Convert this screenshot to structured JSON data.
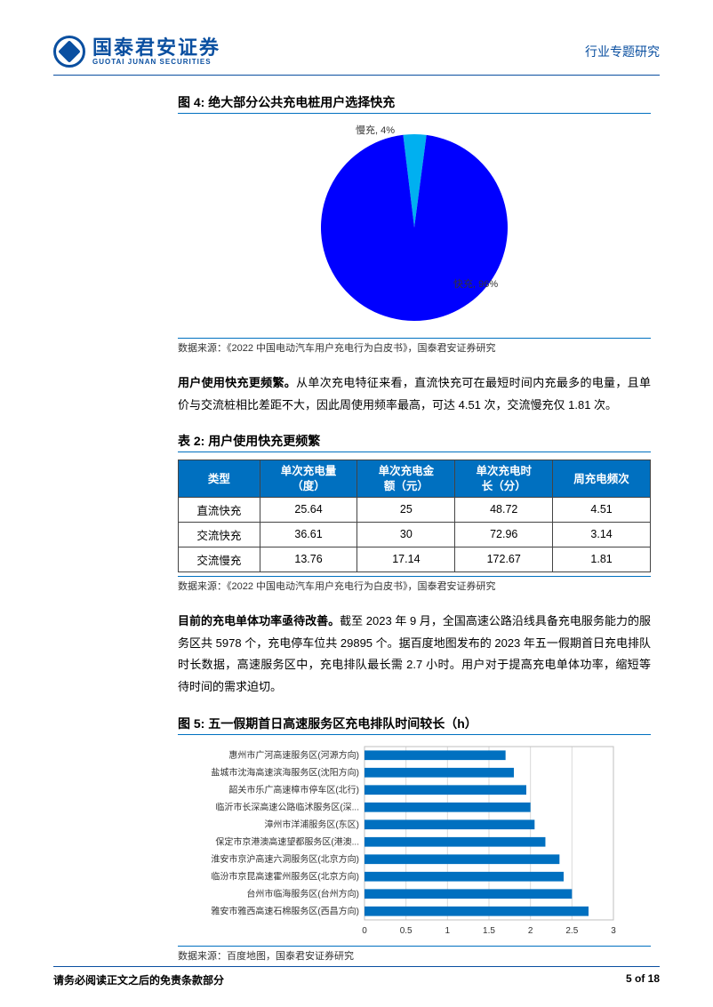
{
  "header": {
    "brand_cn": "国泰君安证券",
    "brand_en": "GUOTAI JUNAN SECURITIES",
    "right": "行业专题研究"
  },
  "fig4": {
    "title": "图 4:   绝大部分公共充电桩用户选择快充",
    "type": "pie",
    "slices": [
      {
        "label": "慢充, 4%",
        "value": 4,
        "color": "#00b0f0"
      },
      {
        "label": "快充, 96%",
        "value": 96,
        "color": "#0000ff"
      }
    ],
    "label_fontsize": 11,
    "bg": "#ffffff",
    "source": "数据来源：《2022 中国电动汽车用户充电行为白皮书》，国泰君安证券研究"
  },
  "para1": {
    "lead": "用户使用快充更频繁。",
    "body": "从单次充电特征来看，直流快充可在最短时间内充最多的电量，且单价与交流桩相比差距不大，因此周使用频率最高，可达 4.51 次，交流慢充仅 1.81 次。"
  },
  "table2": {
    "title": "表 2:   用户使用快充更频繁",
    "columns": [
      "类型",
      "单次充电量（度）",
      "单次充电金额（元）",
      "单次充电时长（分）",
      "周充电频次"
    ],
    "rows": [
      [
        "直流快充",
        "25.64",
        "25",
        "48.72",
        "4.51"
      ],
      [
        "交流快充",
        "36.61",
        "30",
        "72.96",
        "3.14"
      ],
      [
        "交流慢充",
        "13.76",
        "17.14",
        "172.67",
        "1.81"
      ]
    ],
    "header_bg": "#0070c0",
    "header_color": "#ffffff",
    "border_color": "#444444",
    "source": "数据来源：《2022 中国电动汽车用户充电行为白皮书》，国泰君安证券研究"
  },
  "para2": {
    "lead": "目前的充电单体功率亟待改善。",
    "body": "截至 2023 年 9 月，全国高速公路沿线具备充电服务能力的服务区共 5978 个，充电停车位共 29895 个。据百度地图发布的 2023 年五一假期首日充电排队时长数据，高速服务区中，充电排队最长需 2.7 小时。用户对于提高充电单体功率，缩短等待时间的需求迫切。"
  },
  "fig5": {
    "title": "图 5:   五一假期首日高速服务区充电排队时间较长（h）",
    "type": "bar",
    "xlim": [
      0,
      3
    ],
    "xtick_step": 0.5,
    "bar_color": "#0070c0",
    "grid_color": "#d9d9d9",
    "bg": "#ffffff",
    "label_fontsize": 10,
    "categories": [
      "惠州市广河高速服务区(河源方向)",
      "盐城市沈海高速滨海服务区(沈阳方向)",
      "韶关市乐广高速樟市停车区(北行)",
      "临沂市长深高速公路临沭服务区(深...",
      "漳州市洋浦服务区(东区)",
      "保定市京港澳高速望都服务区(港澳...",
      "淮安市京沪高速六洞服务区(北京方向)",
      "临汾市京昆高速霍州服务区(北京方向)",
      "台州市临海服务区(台州方向)",
      "雅安市雅西高速石棉服务区(西昌方向)"
    ],
    "values": [
      1.7,
      1.8,
      1.95,
      2.0,
      2.05,
      2.18,
      2.35,
      2.4,
      2.5,
      2.7
    ],
    "source": "数据来源：百度地图，国泰君安证券研究"
  },
  "footer": {
    "left": "请务必阅读正文之后的免责条款部分",
    "right": "5 of 18"
  }
}
